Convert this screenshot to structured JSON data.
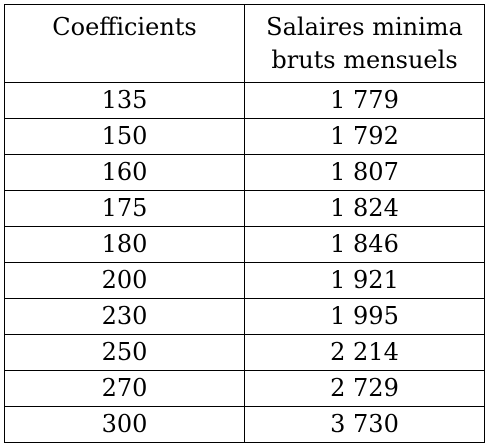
{
  "table": {
    "headers": [
      "Coefficients",
      "Salaires minima bruts mensuels"
    ],
    "rows": [
      {
        "coefficient": "135",
        "salary": "1 779"
      },
      {
        "coefficient": "150",
        "salary": "1 792"
      },
      {
        "coefficient": "160",
        "salary": "1 807"
      },
      {
        "coefficient": "175",
        "salary": "1 824"
      },
      {
        "coefficient": "180",
        "salary": "1 846"
      },
      {
        "coefficient": "200",
        "salary": "1 921"
      },
      {
        "coefficient": "230",
        "salary": "1 995"
      },
      {
        "coefficient": "250",
        "salary": "2 214"
      },
      {
        "coefficient": "270",
        "salary": "2 729"
      },
      {
        "coefficient": "300",
        "salary": "3 730"
      }
    ]
  }
}
